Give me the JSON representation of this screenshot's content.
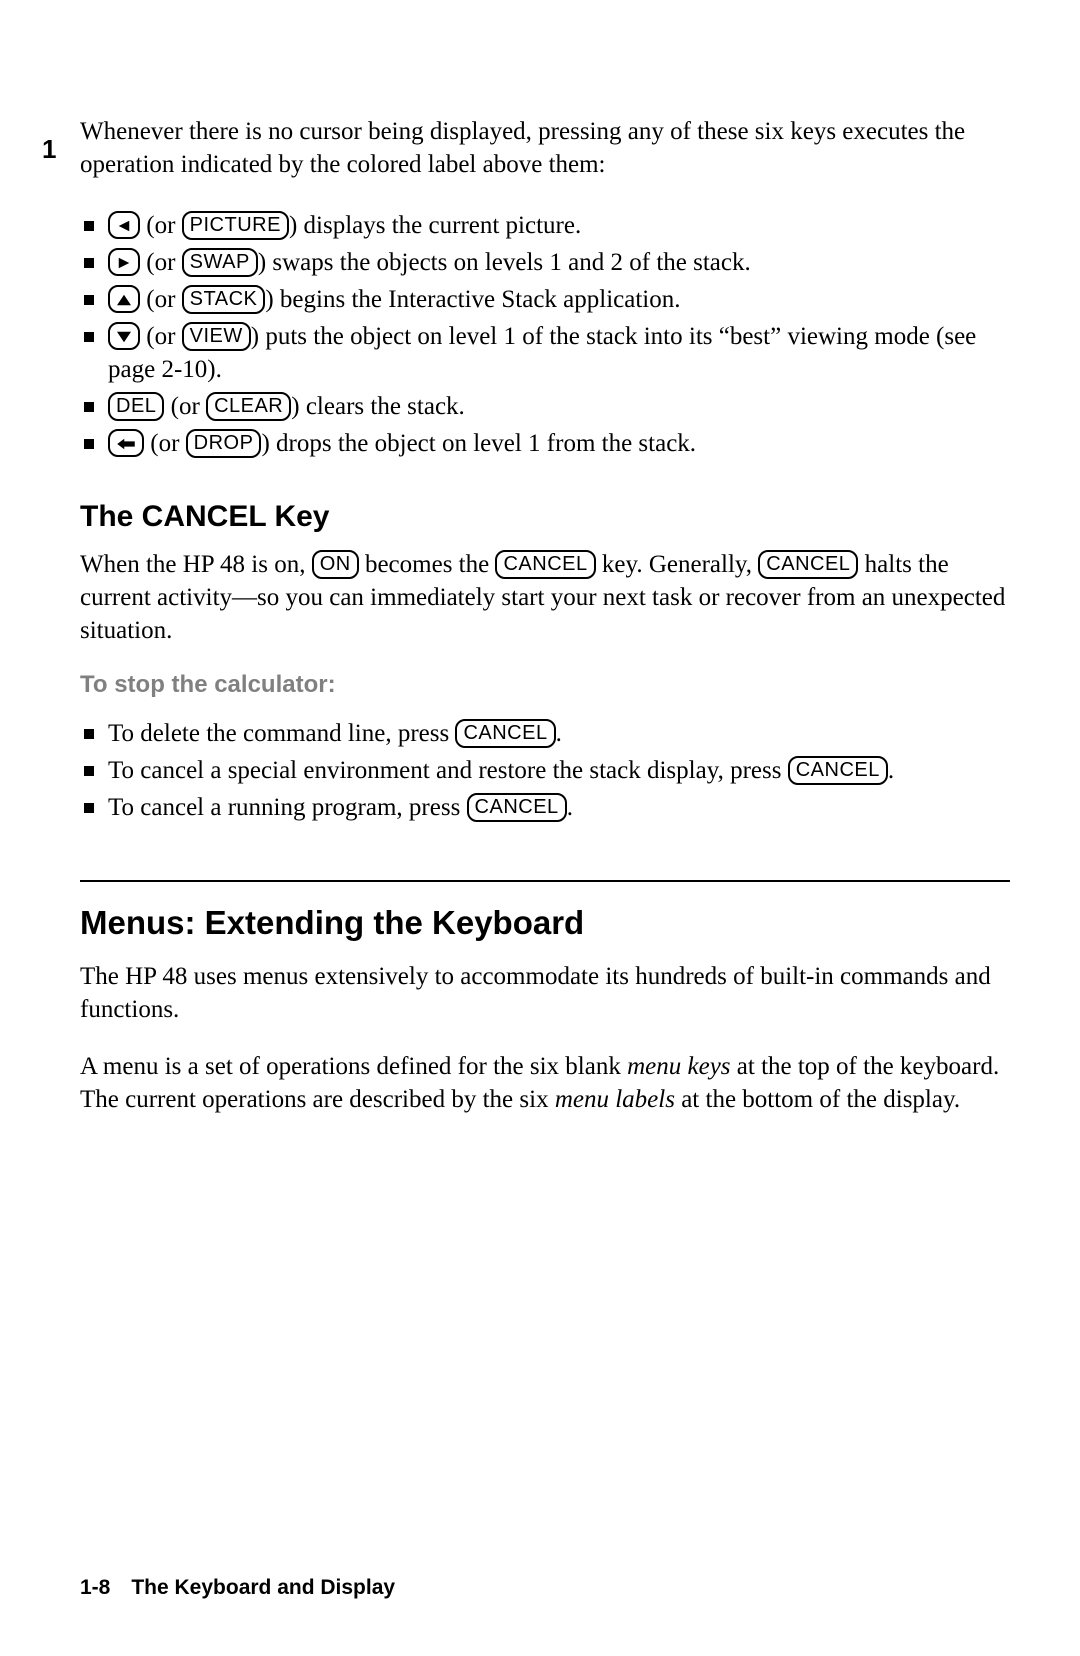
{
  "margin_page_number": "1",
  "intro": "Whenever there is no cursor being displayed, pressing any of these six keys executes the operation indicated by the colored label above them:",
  "list1": [
    {
      "icon": "left",
      "alt": "PICTURE",
      "text_after": ") displays the current picture."
    },
    {
      "icon": "right",
      "alt": "SWAP",
      "text_after": ") swaps the objects on levels 1 and 2 of the stack."
    },
    {
      "icon": "up",
      "alt": "STACK",
      "text_after": ") begins the Interactive Stack application."
    },
    {
      "icon": "down",
      "alt": "VIEW",
      "text_after": ") puts the object on level 1 of the stack into its “best” viewing mode (see page 2-10)."
    },
    {
      "label": "DEL",
      "alt": "CLEAR",
      "text_after": ") clears the stack."
    },
    {
      "icon": "back",
      "alt": "DROP",
      "text_after": ") drops the object on level 1 from the stack."
    }
  ],
  "h2a": "The CANCEL Key",
  "para1_a": "When the HP 48 is on, ",
  "para1_key1": "ON",
  "para1_b": " becomes the ",
  "para1_key2": "CANCEL",
  "para1_c": " key. Generally, ",
  "para1_key3": "CANCEL",
  "para1_d": " halts the current activity—so you can immediately start your next task or recover from an unexpected situation.",
  "subhead": "To stop the calculator:",
  "list2": [
    {
      "pre": "To delete the command line, press ",
      "key": "CANCEL",
      "post": "."
    },
    {
      "pre": "To cancel a special environment and restore the stack display, press ",
      "key": "CANCEL",
      "post": "."
    },
    {
      "pre": "To cancel a running program, press ",
      "key": "CANCEL",
      "post": "."
    }
  ],
  "h1": "Menus: Extending the Keyboard",
  "para2": "The HP 48 uses menus extensively to accommodate its hundreds of built-in commands and functions.",
  "para3_a": "A menu is a set of operations defined for the six blank ",
  "para3_i1": "menu keys",
  "para3_b": " at the top of the keyboard. The current operations are described by the six ",
  "para3_i2": "menu labels",
  "para3_c": " at the bottom of the display.",
  "footer": "1-8 The Keyboard and Display"
}
